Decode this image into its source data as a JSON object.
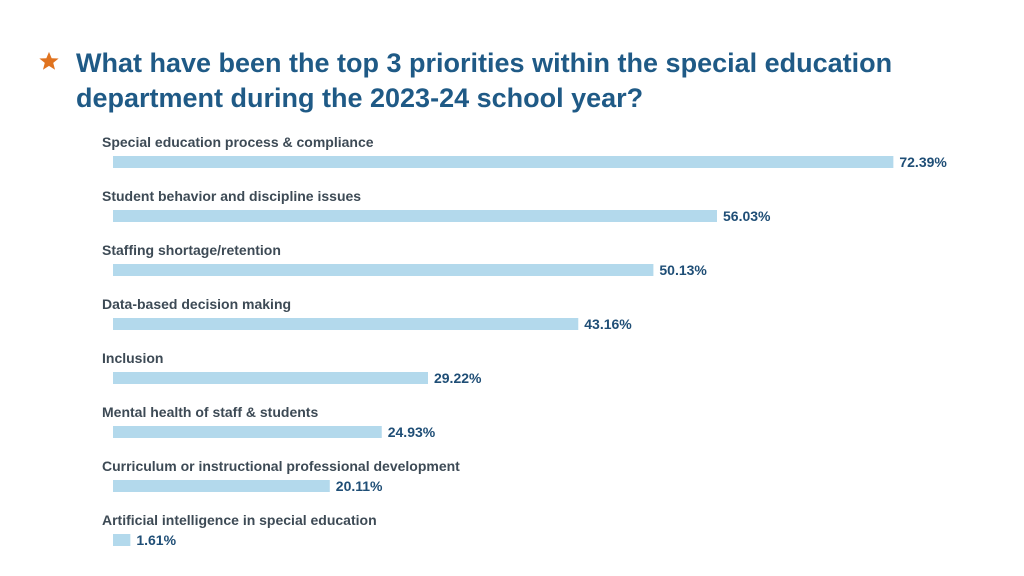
{
  "title": "What have been the top 3 priorities within the special education department during the 2023-24 school year?",
  "colors": {
    "title": "#1f5a86",
    "star": "#e0731f",
    "bar": "#b3d9ec",
    "category_label": "#3d4a55",
    "value_label": "#1f4e76"
  },
  "icons": {
    "title_marker": "star-icon"
  },
  "chart_data": {
    "type": "bar",
    "orientation": "horizontal",
    "categories": [
      "Special education process & compliance",
      "Student behavior and discipline issues",
      "Staffing shortage/retention",
      "Data-based decision making",
      "Inclusion",
      "Mental health of staff & students",
      "Curriculum or instructional professional development",
      "Artificial intelligence in special education"
    ],
    "values": [
      72.39,
      56.03,
      50.13,
      43.16,
      29.22,
      24.93,
      20.11,
      1.61
    ],
    "value_labels": [
      "72.39%",
      "56.03%",
      "50.13%",
      "43.16%",
      "29.22%",
      "24.93%",
      "20.11%",
      "1.61%"
    ],
    "unit": "%",
    "xlim": [
      0,
      100
    ],
    "grid": false,
    "legend": "none"
  }
}
